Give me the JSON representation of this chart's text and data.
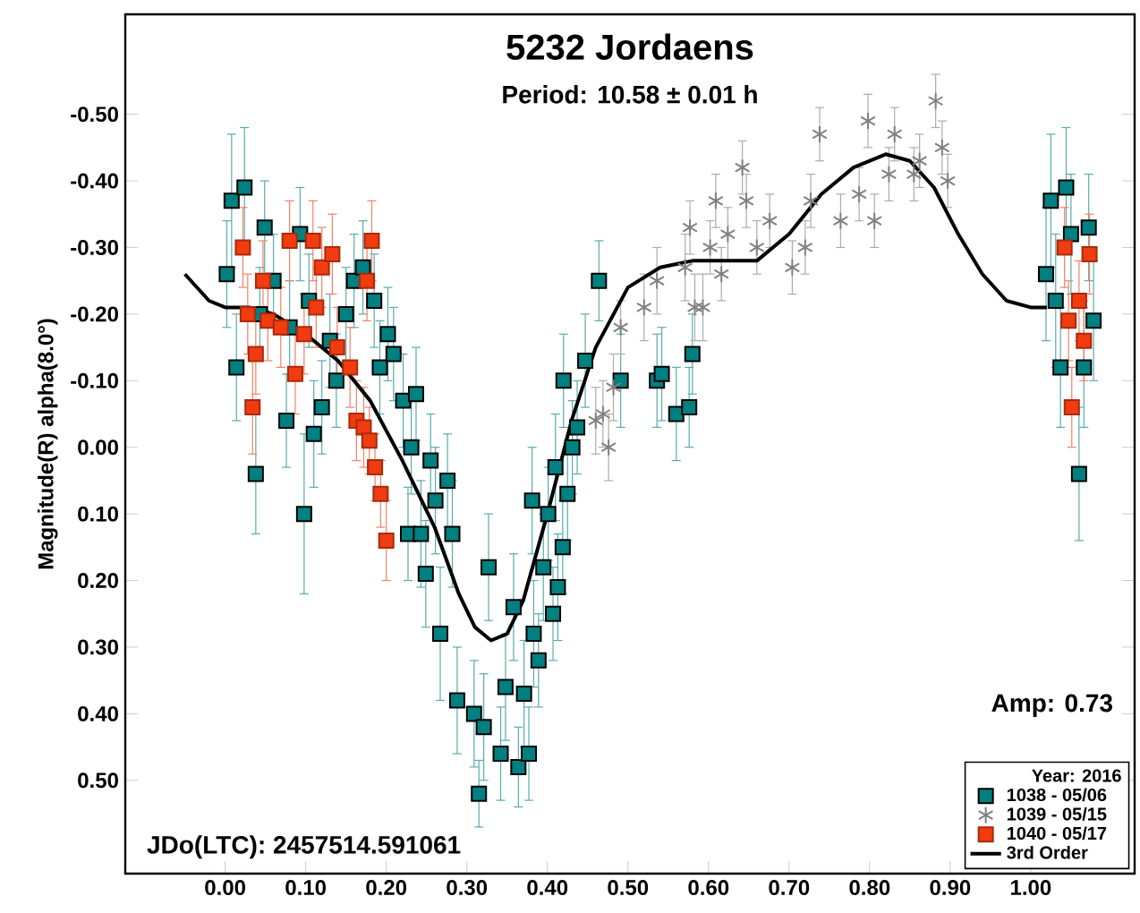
{
  "chart_data": {
    "type": "scatter",
    "title": "5232 Jordaens",
    "subtitle": "Period: 10.58 ± 0.01 h",
    "ylabel": "Magnitude(R) alpha(8.0°)",
    "legend_title": "Year: 2016",
    "legend": "bottom right",
    "grid": false,
    "annotations": [
      "Amp: 0.73",
      "JDo(LTC): 2457514.591061"
    ],
    "xlim": [
      -0.124,
      1.129
    ],
    "ylim": [
      0.64,
      -0.65
    ],
    "xticks": [
      {
        "value": 0,
        "label": "0.00"
      },
      {
        "value": 0.1,
        "label": "0.10"
      },
      {
        "value": 0.2,
        "label": "0.20"
      },
      {
        "value": 0.3,
        "label": "0.30"
      },
      {
        "value": 0.4,
        "label": "0.40"
      },
      {
        "value": 0.5,
        "label": "0.50"
      },
      {
        "value": 0.6,
        "label": "0.60"
      },
      {
        "value": 0.7,
        "label": "0.70"
      },
      {
        "value": 0.8,
        "label": "0.80"
      },
      {
        "value": 0.9,
        "label": "0.90"
      },
      {
        "value": 1,
        "label": "1.00"
      }
    ],
    "yticks": [
      {
        "value": -0.5,
        "label": "-0.50"
      },
      {
        "value": -0.4,
        "label": "-0.40"
      },
      {
        "value": -0.3,
        "label": "-0.30"
      },
      {
        "value": -0.2,
        "label": "-0.20"
      },
      {
        "value": -0.1,
        "label": "-0.10"
      },
      {
        "value": 0,
        "label": "0.00"
      },
      {
        "value": 0.1,
        "label": "0.10"
      },
      {
        "value": 0.2,
        "label": "0.20"
      },
      {
        "value": 0.3,
        "label": "0.30"
      },
      {
        "value": 0.4,
        "label": "0.40"
      },
      {
        "value": 0.5,
        "label": "0.50"
      }
    ],
    "series": [
      {
        "name": "1038 - 05/06",
        "marker": "square",
        "color": "#008080",
        "x": [
          0.002,
          0.008,
          0.014,
          0.024,
          0.043,
          0.038,
          0.049,
          0.06,
          0.076,
          0.08,
          0.093,
          0.098,
          0.104,
          0.11,
          0.12,
          0.13,
          0.138,
          0.15,
          0.16,
          0.171,
          0.185,
          0.192,
          0.202,
          0.209,
          0.221,
          0.227,
          0.231,
          0.237,
          0.243,
          0.249,
          0.255,
          0.261,
          0.267,
          0.276,
          0.282,
          0.288,
          0.309,
          0.315,
          0.321,
          0.327,
          0.342,
          0.348,
          0.358,
          0.364,
          0.371,
          0.377,
          0.383,
          0.389,
          0.381,
          0.395,
          0.401,
          0.407,
          0.413,
          0.419,
          0.41,
          0.425,
          0.431,
          0.437,
          0.42,
          0.447,
          0.464,
          0.491,
          0.536,
          0.542,
          0.56,
          0.576,
          0.58,
          1.019,
          1.025,
          1.031,
          1.037,
          1.044,
          1.05,
          1.06,
          1.066,
          1.072,
          1.078
        ],
        "values": [
          -0.26,
          -0.37,
          -0.12,
          -0.39,
          -0.2,
          0.04,
          -0.33,
          -0.25,
          -0.04,
          -0.18,
          -0.32,
          0.1,
          -0.22,
          -0.02,
          -0.06,
          -0.16,
          -0.1,
          -0.2,
          -0.25,
          -0.27,
          -0.22,
          -0.12,
          -0.17,
          -0.14,
          -0.07,
          0.13,
          0,
          -0.08,
          0.13,
          0.19,
          0.02,
          0.08,
          0.28,
          0.05,
          0.13,
          0.38,
          0.4,
          0.52,
          0.42,
          0.18,
          0.46,
          0.36,
          0.24,
          0.48,
          0.37,
          0.46,
          0.28,
          0.32,
          0.08,
          0.18,
          0.1,
          0.25,
          0.21,
          0.15,
          0.03,
          0.07,
          0,
          -0.03,
          -0.1,
          -0.13,
          -0.25,
          -0.1,
          -0.1,
          -0.11,
          -0.05,
          -0.06,
          -0.14,
          -0.26,
          -0.37,
          -0.22,
          -0.12,
          -0.39,
          -0.32,
          0.04,
          -0.12,
          -0.33,
          -0.19
        ],
        "errors": [
          0.08,
          0.1,
          0.08,
          0.09,
          0.07,
          0.09,
          0.07,
          0.07,
          0.07,
          0.07,
          0.07,
          0.12,
          0.07,
          0.08,
          0.07,
          0.07,
          0.07,
          0.07,
          0.07,
          0.07,
          0.07,
          0.07,
          0.07,
          0.07,
          0.07,
          0.07,
          0.07,
          0.07,
          0.08,
          0.08,
          0.07,
          0.08,
          0.1,
          0.07,
          0.08,
          0.08,
          0.08,
          0.05,
          0.08,
          0.08,
          0.07,
          0.08,
          0.08,
          0.06,
          0.08,
          0.07,
          0.08,
          0.07,
          0.08,
          0.08,
          0.07,
          0.07,
          0.08,
          0.07,
          0.08,
          0.07,
          0.07,
          0.07,
          0.07,
          0.07,
          0.06,
          0.07,
          0.07,
          0.07,
          0.07,
          0.06,
          0.06,
          0.1,
          0.1,
          0.1,
          0.09,
          0.09,
          0.09,
          0.1,
          0.09,
          0.08,
          0.09
        ]
      },
      {
        "name": "1039 - 05/15",
        "marker": "cross",
        "color": "#808080",
        "x": [
          0.46,
          0.469,
          0.476,
          0.482,
          0.491,
          0.52,
          0.536,
          0.571,
          0.577,
          0.583,
          0.593,
          0.602,
          0.609,
          0.616,
          0.624,
          0.642,
          0.647,
          0.66,
          0.676,
          0.704,
          0.72,
          0.727,
          0.738,
          0.764,
          0.787,
          0.798,
          0.806,
          0.824,
          0.831,
          0.855,
          0.862,
          0.882,
          0.89,
          0.897
        ],
        "values": [
          -0.04,
          -0.05,
          0,
          -0.09,
          -0.18,
          -0.21,
          -0.25,
          -0.27,
          -0.33,
          -0.21,
          -0.21,
          -0.3,
          -0.37,
          -0.26,
          -0.32,
          -0.42,
          -0.37,
          -0.3,
          -0.34,
          -0.27,
          -0.3,
          -0.37,
          -0.47,
          -0.34,
          -0.38,
          -0.49,
          -0.34,
          -0.41,
          -0.47,
          -0.41,
          -0.43,
          -0.52,
          -0.45,
          -0.4
        ],
        "errors": [
          0.05,
          0.05,
          0.05,
          0.05,
          0.04,
          0.05,
          0.05,
          0.05,
          0.04,
          0.05,
          0.05,
          0.04,
          0.04,
          0.04,
          0.04,
          0.04,
          0.04,
          0.04,
          0.04,
          0.04,
          0.04,
          0.04,
          0.04,
          0.04,
          0.04,
          0.04,
          0.04,
          0.04,
          0.04,
          0.04,
          0.04,
          0.04,
          0.04,
          0.04
        ]
      },
      {
        "name": "1040 - 05/17",
        "marker": "square",
        "color": "#f03c10",
        "x": [
          0.022,
          0.028,
          0.034,
          0.038,
          0.047,
          0.053,
          0.069,
          0.08,
          0.087,
          0.098,
          0.109,
          0.113,
          0.12,
          0.133,
          0.139,
          0.155,
          0.163,
          0.172,
          0.182,
          0.176,
          0.179,
          0.186,
          0.193,
          0.2,
          1.042,
          1.051,
          1.047,
          1.06,
          1.066,
          1.073
        ],
        "values": [
          -0.3,
          -0.2,
          -0.06,
          -0.14,
          -0.25,
          -0.19,
          -0.18,
          -0.31,
          -0.11,
          -0.17,
          -0.31,
          -0.21,
          -0.27,
          -0.29,
          -0.15,
          -0.12,
          -0.04,
          -0.03,
          -0.31,
          -0.25,
          -0.01,
          0.03,
          0.07,
          0.14,
          -0.3,
          -0.06,
          -0.19,
          -0.22,
          -0.16,
          -0.29
        ],
        "errors": [
          0.06,
          0.06,
          0.07,
          0.06,
          0.06,
          0.06,
          0.06,
          0.06,
          0.06,
          0.06,
          0.06,
          0.06,
          0.06,
          0.06,
          0.06,
          0.06,
          0.06,
          0.06,
          0.06,
          0.06,
          0.05,
          0.05,
          0.05,
          0.06,
          0.06,
          0.06,
          0.06,
          0.06,
          0.06,
          0.06
        ]
      },
      {
        "name": "3rd Order",
        "type": "line",
        "line_style": "solid",
        "color": "#000000",
        "x": [
          -0.05,
          -0.02,
          0,
          0.03,
          0.06,
          0.1,
          0.14,
          0.18,
          0.22,
          0.26,
          0.29,
          0.31,
          0.33,
          0.35,
          0.37,
          0.4,
          0.43,
          0.46,
          0.5,
          0.54,
          0.58,
          0.62,
          0.66,
          0.7,
          0.74,
          0.78,
          0.82,
          0.85,
          0.88,
          0.91,
          0.94,
          0.97,
          1,
          1.02
        ],
        "values": [
          -0.26,
          -0.22,
          -0.21,
          -0.21,
          -0.2,
          -0.17,
          -0.13,
          -0.07,
          0.02,
          0.12,
          0.22,
          0.27,
          0.29,
          0.28,
          0.23,
          0.1,
          -0.04,
          -0.15,
          -0.24,
          -0.27,
          -0.28,
          -0.28,
          -0.28,
          -0.32,
          -0.38,
          -0.42,
          -0.44,
          -0.43,
          -0.39,
          -0.32,
          -0.26,
          -0.22,
          -0.21,
          -0.21
        ]
      }
    ]
  }
}
